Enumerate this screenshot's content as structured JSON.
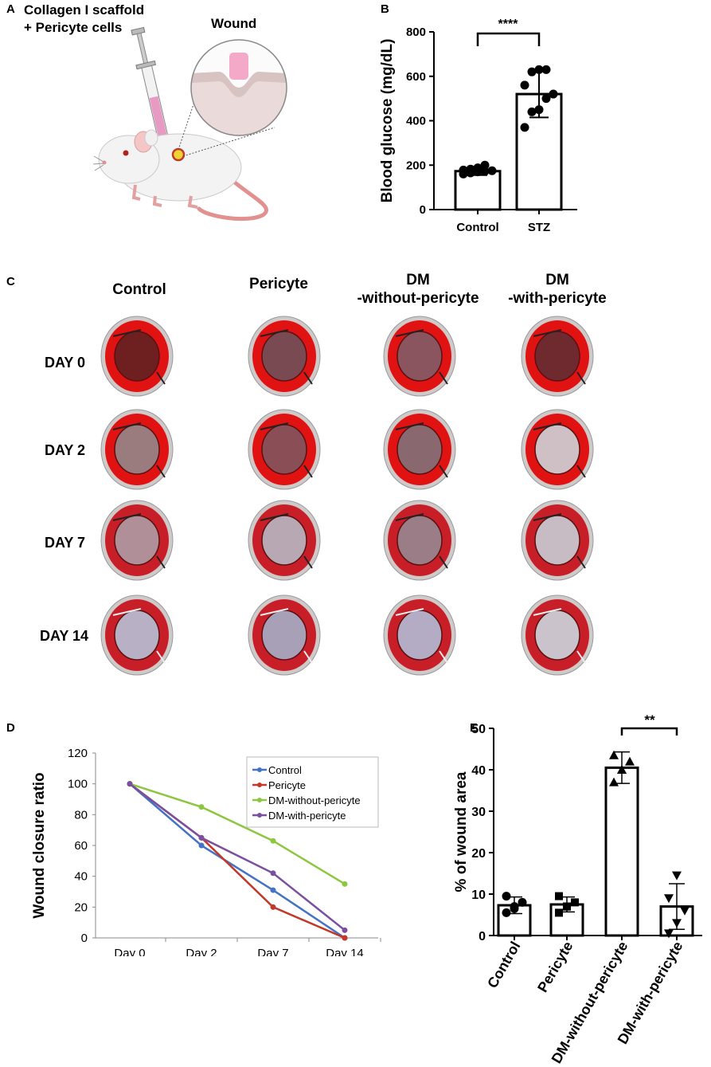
{
  "panelA": {
    "label": "A",
    "title_line1": "Collagen I scaffold",
    "title_line2": "+ Pericyte cells",
    "wound_label": "Wound"
  },
  "panelC": {
    "label": "C",
    "columns": [
      "Control",
      "Pericyte",
      "DM",
      "-without-pericyte",
      "DM",
      "-with-pericyte"
    ],
    "rows": [
      "DAY 0",
      "DAY 2",
      "DAY 7",
      "DAY 14"
    ]
  },
  "chart_data": [
    {
      "panel": "B",
      "type": "bar",
      "ylabel": "Blood glucose (mg/dL)",
      "categories": [
        "Control",
        "STZ"
      ],
      "values": [
        173,
        520
      ],
      "error": [
        18,
        105
      ],
      "ylim": [
        0,
        800
      ],
      "yticks": [
        0,
        200,
        400,
        600,
        800
      ],
      "points": [
        [
          160,
          165,
          170,
          172,
          175,
          178,
          182,
          188,
          200
        ],
        [
          370,
          440,
          450,
          500,
          520,
          560,
          620,
          630,
          630
        ]
      ],
      "significance": "****"
    },
    {
      "panel": "D",
      "type": "line",
      "ylabel": "Wound closure ratio",
      "categories": [
        "Day 0",
        "Day 2",
        "Day 7",
        "Day 14"
      ],
      "ylim": [
        0,
        120
      ],
      "yticks": [
        0,
        20,
        40,
        60,
        80,
        100,
        120
      ],
      "series": [
        {
          "name": "Control",
          "color": "#4472C4",
          "values": [
            100,
            60,
            31,
            0
          ]
        },
        {
          "name": "Pericyte",
          "color": "#C0392B",
          "values": [
            100,
            65,
            20,
            0
          ]
        },
        {
          "name": "DM-without-pericyte",
          "color": "#8DC63F",
          "values": [
            100,
            85,
            63,
            35
          ]
        },
        {
          "name": "DM-with-pericyte",
          "color": "#7B4FA0",
          "values": [
            100,
            65,
            42,
            5
          ]
        }
      ]
    },
    {
      "panel": "E",
      "type": "bar",
      "ylabel": "% of wound area",
      "categories": [
        "Control",
        "Pericyte",
        "DM-without-pericyte",
        "DM-with-pericyte"
      ],
      "values": [
        7.3,
        7.5,
        40.5,
        7.0
      ],
      "error": [
        2.0,
        1.8,
        3.8,
        5.5
      ],
      "ylim": [
        0,
        50
      ],
      "yticks": [
        0,
        10,
        20,
        30,
        40,
        50
      ],
      "points": [
        [
          5.5,
          6.5,
          8,
          9.5,
          7
        ],
        [
          5.5,
          7,
          8,
          9.5,
          7
        ],
        [
          37,
          40,
          42,
          43.5,
          40
        ],
        [
          0.5,
          3,
          6,
          9,
          14.5
        ]
      ],
      "significance": "**"
    }
  ]
}
